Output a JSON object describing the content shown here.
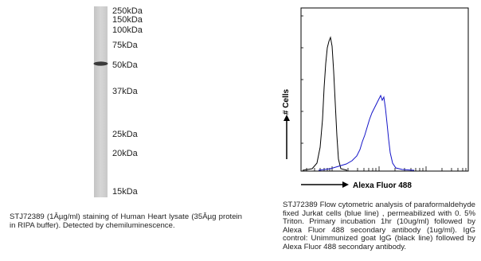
{
  "blot": {
    "markers": [
      "250kDa",
      "150kDa",
      "100kDa",
      "75kDa",
      "50kDa",
      "37kDa",
      "25kDa",
      "20kDa",
      "15kDa"
    ],
    "caption": "STJ72389 (1Âµg/ml) staining of Human Heart lysate (35Âµg protein in RIPA buffer). Detected by chemiluminescence."
  },
  "flow": {
    "y_label": "# Cells",
    "x_label": "Alexa Fluor 488",
    "caption": "STJ72389 Flow cytometric analysis of paraformaldehyde fixed Jurkat cells (blue line) , permeabilized with 0. 5% Triton. Primary incubation 1hr (10ug/ml) followed by Alexa Fluor 488 secondary antibody (1ug/ml). IgG control: Unimmunized goat IgG (black line) followed by Alexa Fluor 488 secondary antibody."
  }
}
